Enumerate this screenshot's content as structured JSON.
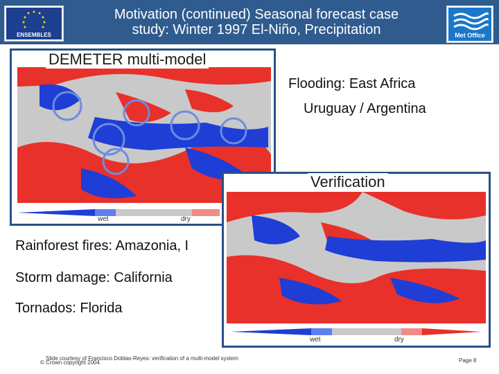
{
  "header": {
    "title_line1": "Motivation (continued) Seasonal forecast case",
    "title_line2": "study: Winter 1997 El-Niño, Precipitation",
    "left_logo_text": "ENSEMBLES",
    "right_logo_text": "Met Office"
  },
  "panel_top": {
    "label": "DEMETER multi-model",
    "legend_wet": "wet",
    "legend_dry": "dry"
  },
  "panel_bottom": {
    "label": "Verification",
    "legend_wet": "wet",
    "legend_dry": "dry"
  },
  "bullets": [
    "Flooding: East Africa",
    "Uruguay / Argentina",
    "Rainforest fires: Amazonia, I",
    "Storm damage: California",
    "Tornados: Florida"
  ],
  "footer": {
    "credit": "Slide courtesy of Francisco Doblas-Reyes: verification of a multi-model system",
    "copyright": "© Crown copyright 2004",
    "page": "Page 8"
  },
  "colors": {
    "header_bg": "#2f5b8e",
    "wet": "#1e3ed6",
    "dry": "#e8312a",
    "neutral": "#c9c9c9",
    "panel_border": "#2a4f86"
  }
}
